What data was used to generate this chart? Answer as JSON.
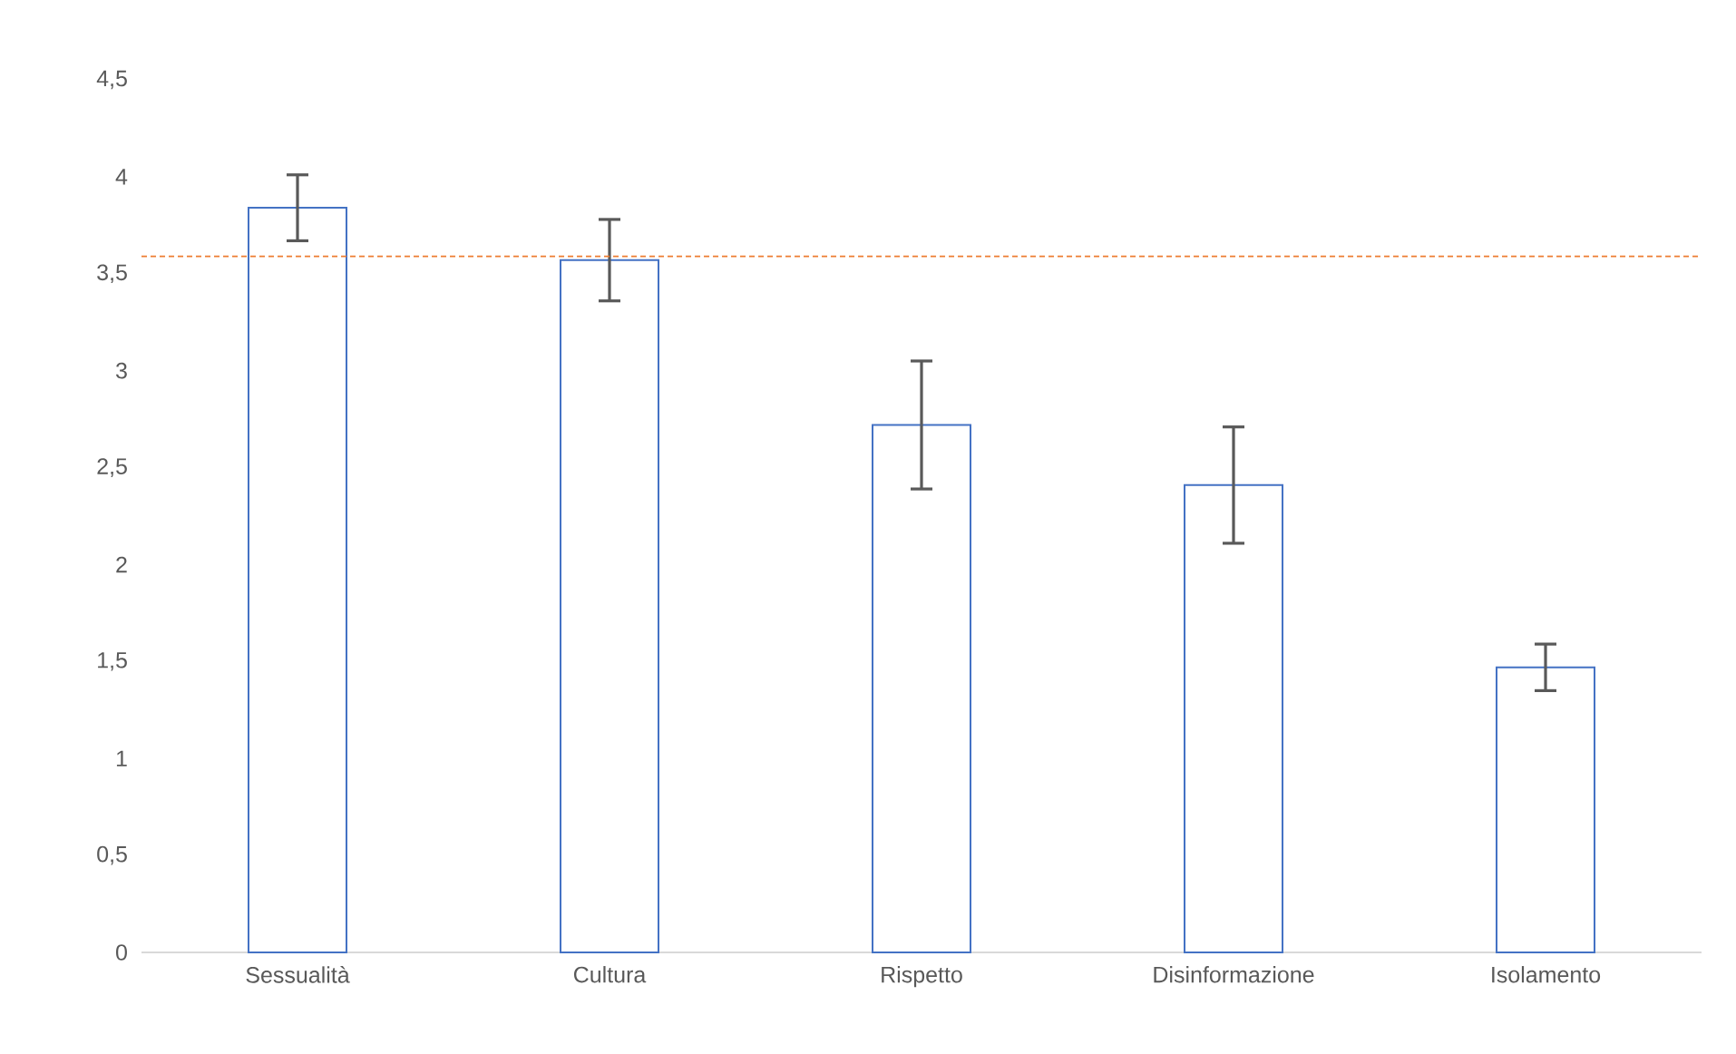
{
  "chart_data": {
    "type": "bar",
    "categories": [
      "Sessualità",
      "Cultura",
      "Rispetto",
      "Disinformazione",
      "Isolamento"
    ],
    "values": [
      3.84,
      3.57,
      2.72,
      2.41,
      1.47
    ],
    "errors": [
      0.17,
      0.21,
      0.33,
      0.3,
      0.12
    ],
    "color": "#4472c4",
    "ylim": [
      0,
      4.5
    ],
    "yticks": [
      0,
      {
        "value": 0.5,
        "label": "0,5"
      },
      1,
      {
        "value": 1.5,
        "label": "1,5"
      },
      2,
      {
        "value": 2.5,
        "label": "2,5"
      },
      3,
      {
        "value": 3.5,
        "label": "3,5"
      },
      4,
      {
        "value": 4.5,
        "label": "4,5"
      }
    ],
    "ref_lines": [
      {
        "axis": "y",
        "value": 3.59,
        "color": "#ed7d31",
        "line_style": "dashed"
      }
    ]
  }
}
